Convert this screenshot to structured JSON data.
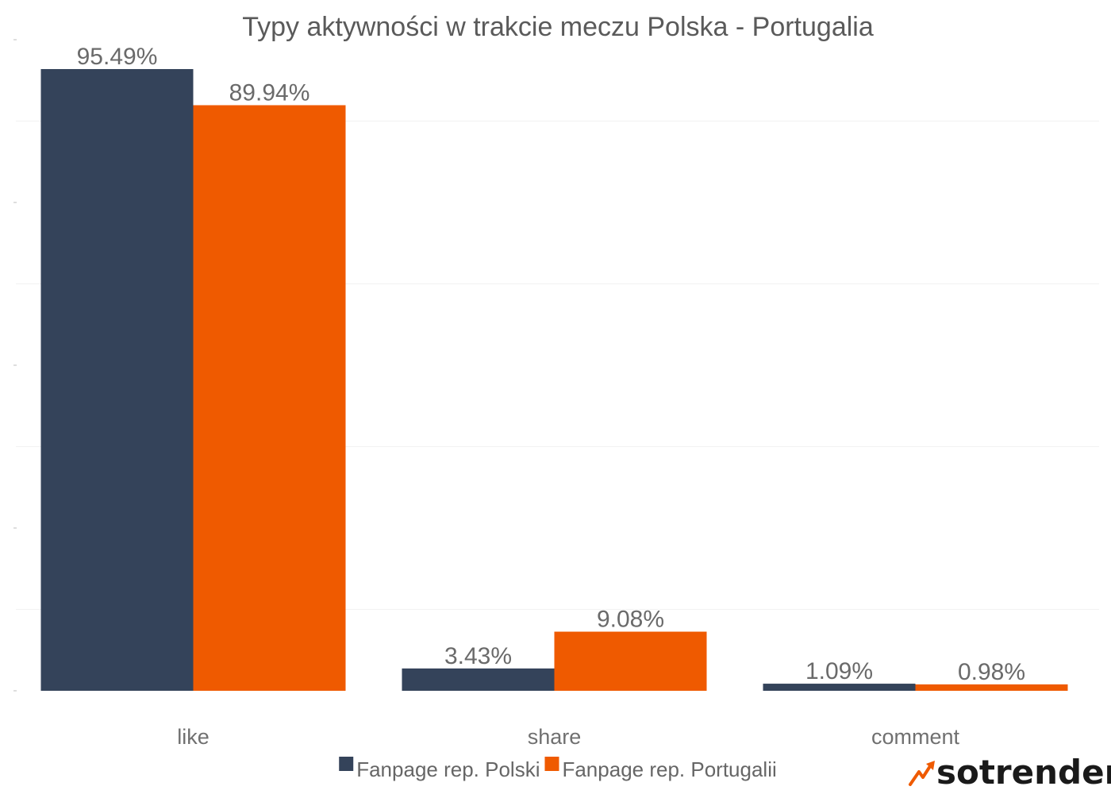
{
  "chart_data": {
    "type": "bar",
    "title": "Typy aktywności w trakcie meczu Polska - Portugalia",
    "categories": [
      "like",
      "share",
      "comment"
    ],
    "series": [
      {
        "name": "Fanpage rep. Polski",
        "color": "#34435a",
        "values": [
          95.49,
          3.43,
          1.09
        ],
        "labels": [
          "95.49%",
          "3.43%",
          "1.09%"
        ]
      },
      {
        "name": "Fanpage rep. Portugalii",
        "color": "#ef5a00",
        "values": [
          89.94,
          9.08,
          0.98
        ],
        "labels": [
          "89.94%",
          "9.08%",
          "0.98%"
        ]
      }
    ],
    "ylim": [
      0,
      100
    ],
    "grid": true,
    "legend_position": "bottom-center"
  },
  "brand": {
    "name": "sotrender",
    "icon": "trend-arrow-icon",
    "accent_color": "#ef5a00"
  }
}
